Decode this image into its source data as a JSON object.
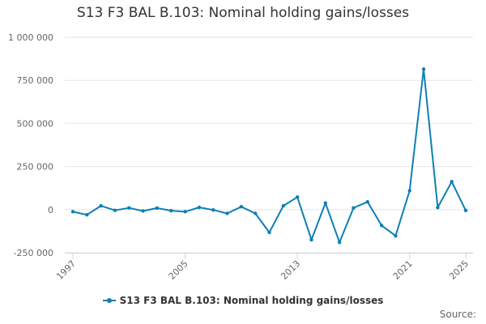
{
  "chart_data": {
    "type": "line",
    "title": "S13 F3 BAL B.103: Nominal holding gains/losses",
    "xlabel": "",
    "ylabel": "",
    "x": [
      1997,
      1998,
      1999,
      2000,
      2001,
      2002,
      2003,
      2004,
      2005,
      2006,
      2007,
      2008,
      2009,
      2010,
      2011,
      2012,
      2013,
      2014,
      2015,
      2016,
      2017,
      2018,
      2019,
      2020,
      2021,
      2022,
      2023,
      2024,
      2025
    ],
    "x_ticks": [
      "1997",
      "2005",
      "2013",
      "2021",
      "2025"
    ],
    "y_ticks": [
      "1 000 000",
      "750 000",
      "500 000",
      "250 000",
      "0",
      "-250 000"
    ],
    "ylim": [
      -250000,
      1000000
    ],
    "grid": true,
    "legend_position": "bottom",
    "series": [
      {
        "name": "S13 F3 BAL B.103: Nominal holding gains/losses",
        "color": "#0e7fb4",
        "values": [
          -12000,
          -30000,
          22000,
          -4000,
          10000,
          -8000,
          9000,
          -6000,
          -12000,
          13000,
          -2000,
          -22000,
          17000,
          -22000,
          -132000,
          22000,
          73000,
          -175000,
          38000,
          -190000,
          10000,
          45000,
          -92000,
          -152000,
          110000,
          815000,
          12000,
          162000,
          -5000
        ]
      }
    ]
  },
  "legend": {
    "label": "S13 F3 BAL B.103: Nominal holding gains/losses"
  },
  "source_label": "Source:"
}
